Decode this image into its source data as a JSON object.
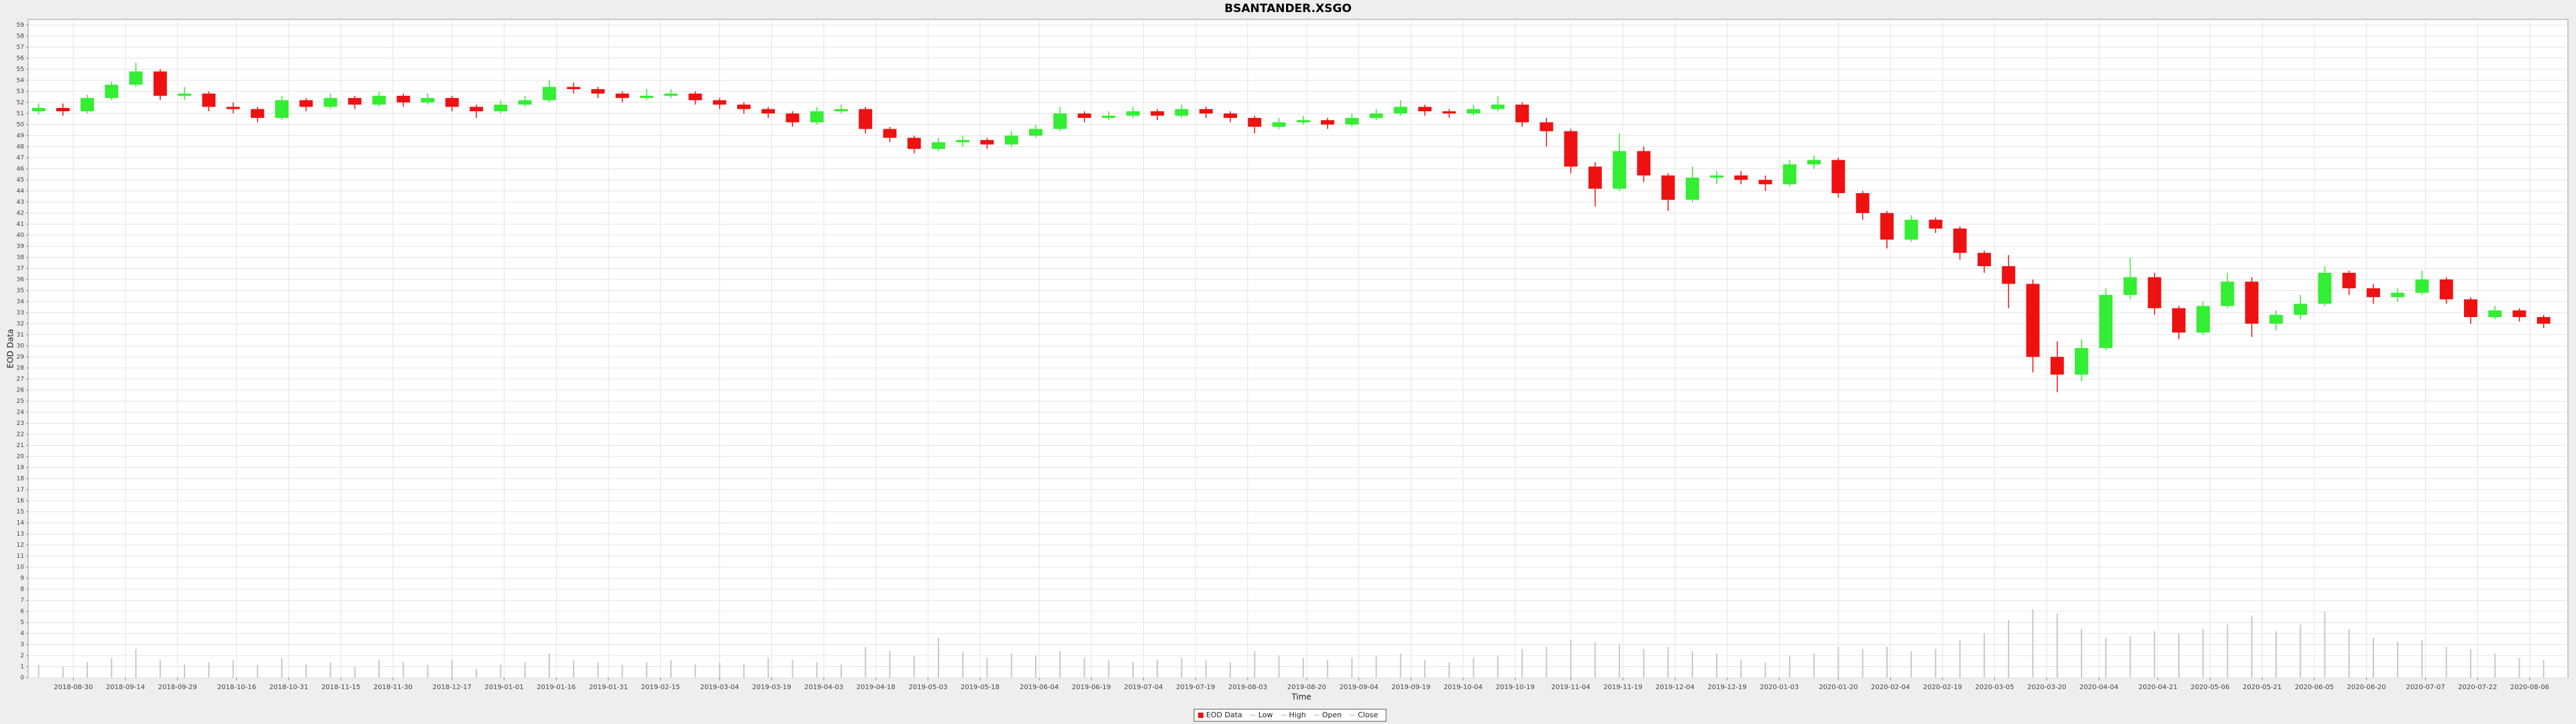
{
  "chart_data": {
    "type": "candlestick",
    "title": "BSANTANDER.XSGO",
    "x_label": "Time",
    "y_label": "EOD Data",
    "x": [
      "2018-08-20",
      "2018-08-27",
      "2018-09-03",
      "2018-09-10",
      "2018-09-17",
      "2018-09-24",
      "2018-10-01",
      "2018-10-08",
      "2018-10-15",
      "2018-10-22",
      "2018-10-29",
      "2018-11-05",
      "2018-11-12",
      "2018-11-19",
      "2018-11-26",
      "2018-12-03",
      "2018-12-10",
      "2018-12-17",
      "2018-12-24",
      "2018-12-31",
      "2019-01-07",
      "2019-01-14",
      "2019-01-21",
      "2019-01-28",
      "2019-02-04",
      "2019-02-11",
      "2019-02-18",
      "2019-02-25",
      "2019-03-04",
      "2019-03-11",
      "2019-03-18",
      "2019-03-25",
      "2019-04-01",
      "2019-04-08",
      "2019-04-15",
      "2019-04-22",
      "2019-04-29",
      "2019-05-06",
      "2019-05-13",
      "2019-05-20",
      "2019-05-27",
      "2019-06-03",
      "2019-06-10",
      "2019-06-17",
      "2019-06-24",
      "2019-07-01",
      "2019-07-08",
      "2019-07-15",
      "2019-07-22",
      "2019-07-29",
      "2019-08-05",
      "2019-08-12",
      "2019-08-19",
      "2019-08-26",
      "2019-09-02",
      "2019-09-09",
      "2019-09-16",
      "2019-09-23",
      "2019-09-30",
      "2019-10-07",
      "2019-10-14",
      "2019-10-21",
      "2019-10-28",
      "2019-11-04",
      "2019-11-11",
      "2019-11-18",
      "2019-11-25",
      "2019-12-02",
      "2019-12-09",
      "2019-12-16",
      "2019-12-23",
      "2019-12-30",
      "2020-01-06",
      "2020-01-13",
      "2020-01-20",
      "2020-01-27",
      "2020-02-03",
      "2020-02-10",
      "2020-02-17",
      "2020-02-24",
      "2020-03-02",
      "2020-03-09",
      "2020-03-16",
      "2020-03-23",
      "2020-03-30",
      "2020-04-06",
      "2020-04-13",
      "2020-04-20",
      "2020-04-27",
      "2020-05-04",
      "2020-05-11",
      "2020-05-18",
      "2020-05-25",
      "2020-06-01",
      "2020-06-08",
      "2020-06-15",
      "2020-06-22",
      "2020-06-29",
      "2020-07-06",
      "2020-07-13",
      "2020-07-20",
      "2020-07-27",
      "2020-08-03",
      "2020-08-10"
    ],
    "open": [
      51.2,
      51.5,
      51.2,
      52.4,
      53.6,
      54.8,
      52.6,
      52.8,
      51.6,
      51.4,
      50.6,
      52.2,
      51.6,
      52.4,
      51.8,
      52.6,
      52.0,
      52.4,
      51.6,
      51.2,
      51.8,
      52.2,
      53.4,
      53.2,
      52.8,
      52.4,
      52.6,
      52.8,
      52.2,
      51.8,
      51.4,
      51.0,
      50.2,
      51.2,
      51.4,
      49.6,
      48.8,
      47.8,
      48.4,
      48.6,
      48.2,
      49.0,
      49.6,
      51.0,
      50.6,
      50.8,
      51.2,
      50.8,
      51.4,
      51.0,
      50.6,
      49.8,
      50.2,
      50.4,
      50.0,
      50.6,
      51.0,
      51.6,
      51.2,
      51.0,
      51.4,
      51.8,
      50.2,
      49.4,
      46.2,
      44.2,
      47.6,
      45.4,
      43.2,
      45.2,
      45.4,
      45.0,
      44.6,
      46.4,
      46.8,
      43.8,
      42.0,
      39.6,
      41.4,
      40.6,
      38.4,
      37.2,
      35.6,
      29.0,
      27.4,
      29.8,
      34.6,
      36.2,
      33.4,
      31.2,
      33.6,
      35.8,
      32.0,
      32.8,
      33.8,
      36.6,
      35.2,
      34.4,
      34.8,
      36.0,
      34.2,
      32.6,
      33.2,
      32.6
    ],
    "high": [
      51.9,
      51.9,
      52.7,
      53.9,
      55.6,
      55.0,
      53.4,
      53.0,
      52.0,
      51.6,
      52.6,
      52.4,
      52.8,
      52.6,
      53.0,
      52.8,
      52.8,
      52.6,
      51.8,
      52.2,
      52.6,
      54.0,
      53.8,
      53.4,
      53.0,
      53.2,
      53.2,
      53.0,
      52.4,
      52.0,
      51.6,
      51.2,
      51.6,
      51.8,
      51.6,
      49.8,
      49.0,
      48.8,
      49.0,
      48.8,
      49.4,
      50.0,
      51.6,
      51.2,
      51.2,
      51.6,
      51.4,
      51.8,
      51.6,
      51.2,
      50.8,
      50.6,
      50.8,
      50.6,
      51.0,
      51.4,
      52.2,
      51.8,
      51.4,
      51.8,
      52.6,
      52.0,
      50.6,
      49.6,
      46.6,
      49.2,
      48.0,
      45.6,
      46.2,
      45.8,
      45.8,
      45.4,
      46.8,
      47.2,
      47.0,
      44.0,
      42.2,
      41.8,
      41.6,
      40.8,
      38.6,
      38.2,
      36.0,
      30.4,
      30.6,
      35.2,
      38.0,
      36.6,
      33.6,
      34.0,
      36.6,
      36.2,
      33.2,
      34.6,
      37.2,
      36.8,
      35.6,
      35.2,
      36.8,
      36.2,
      34.4,
      33.6,
      33.4,
      32.8
    ],
    "low": [
      50.9,
      50.8,
      51.0,
      52.2,
      53.4,
      52.2,
      52.2,
      51.2,
      51.0,
      50.2,
      50.4,
      51.2,
      51.4,
      51.4,
      51.6,
      51.6,
      51.8,
      51.2,
      50.6,
      51.0,
      51.6,
      52.0,
      52.8,
      52.4,
      52.0,
      52.2,
      52.4,
      51.8,
      51.4,
      51.0,
      50.6,
      49.8,
      50.0,
      51.0,
      49.2,
      48.4,
      47.4,
      47.6,
      48.0,
      47.8,
      48.0,
      48.8,
      49.4,
      50.2,
      50.4,
      50.6,
      50.4,
      50.6,
      50.6,
      50.2,
      49.2,
      49.6,
      50.0,
      49.6,
      49.8,
      50.4,
      50.8,
      50.8,
      50.6,
      50.8,
      51.2,
      49.8,
      48.0,
      45.6,
      42.6,
      44.0,
      44.8,
      42.2,
      43.0,
      44.6,
      44.6,
      44.0,
      44.4,
      46.0,
      43.4,
      41.4,
      38.8,
      39.4,
      40.2,
      37.8,
      36.6,
      33.4,
      27.6,
      25.8,
      26.8,
      29.6,
      34.2,
      32.8,
      30.6,
      31.0,
      33.4,
      30.8,
      31.4,
      32.4,
      33.6,
      34.6,
      33.8,
      34.0,
      34.6,
      33.8,
      32.0,
      32.4,
      32.2,
      31.6
    ],
    "close": [
      51.5,
      51.2,
      52.4,
      53.6,
      54.8,
      52.6,
      52.8,
      51.6,
      51.4,
      50.6,
      52.2,
      51.6,
      52.4,
      51.8,
      52.6,
      52.0,
      52.4,
      51.6,
      51.2,
      51.8,
      52.2,
      53.4,
      53.2,
      52.8,
      52.4,
      52.6,
      52.8,
      52.2,
      51.8,
      51.4,
      51.0,
      50.2,
      51.2,
      51.4,
      49.6,
      48.8,
      47.8,
      48.4,
      48.6,
      48.2,
      49.0,
      49.6,
      51.0,
      50.6,
      50.8,
      51.2,
      50.8,
      51.4,
      51.0,
      50.6,
      49.8,
      50.2,
      50.4,
      50.0,
      50.6,
      51.0,
      51.6,
      51.2,
      51.0,
      51.4,
      51.8,
      50.2,
      49.4,
      46.2,
      44.2,
      47.6,
      45.4,
      43.2,
      45.2,
      45.4,
      45.0,
      44.6,
      46.4,
      46.8,
      43.8,
      42.0,
      39.6,
      41.4,
      40.6,
      38.4,
      37.2,
      35.6,
      29.0,
      27.4,
      29.8,
      34.6,
      36.2,
      33.4,
      31.2,
      33.6,
      35.8,
      32.0,
      32.8,
      33.8,
      36.6,
      35.2,
      34.4,
      34.8,
      36.0,
      34.2,
      32.6,
      33.2,
      32.6,
      32.0
    ],
    "volume": [
      1.2,
      1.0,
      1.4,
      1.8,
      2.6,
      1.6,
      1.2,
      1.4,
      1.6,
      1.2,
      1.8,
      1.2,
      1.4,
      1.0,
      1.6,
      1.4,
      1.2,
      1.6,
      0.8,
      1.2,
      1.4,
      2.2,
      1.6,
      1.4,
      1.2,
      1.4,
      1.6,
      1.2,
      1.4,
      1.2,
      1.8,
      1.6,
      1.4,
      1.2,
      2.8,
      2.4,
      2.0,
      3.6,
      2.4,
      1.8,
      2.2,
      2.0,
      2.4,
      1.8,
      1.6,
      1.4,
      1.6,
      1.8,
      1.6,
      1.4,
      2.4,
      2.0,
      1.8,
      1.6,
      1.8,
      2.0,
      2.2,
      1.6,
      1.4,
      1.8,
      2.0,
      2.6,
      2.8,
      3.4,
      3.2,
      3.0,
      2.6,
      2.8,
      2.4,
      2.2,
      1.6,
      1.4,
      2.0,
      2.2,
      2.8,
      2.6,
      2.8,
      2.4,
      2.6,
      3.4,
      4.0,
      5.2,
      6.2,
      5.8,
      4.4,
      3.6,
      3.8,
      4.2,
      4.0,
      4.4,
      4.8,
      5.6,
      4.2,
      4.8,
      6.0,
      4.4,
      3.6,
      3.2,
      3.4,
      2.8,
      2.6,
      2.2,
      1.8,
      1.6
    ],
    "up_color": "#33ee33",
    "down_color": "#ee1111",
    "volume_color": "#c8c8c8",
    "xlim": [
      "2018-08-17",
      "2020-08-17"
    ],
    "xticks": [
      "2018-08-30",
      "2018-09-14",
      "2018-09-29",
      "2018-10-16",
      "2018-10-31",
      "2018-11-15",
      "2018-11-30",
      "2018-12-17",
      "2019-01-01",
      "2019-01-16",
      "2019-01-31",
      "2019-02-15",
      "2019-03-04",
      "2019-03-19",
      "2019-04-03",
      "2019-04-18",
      "2019-05-03",
      "2019-05-18",
      "2019-06-04",
      "2019-06-19",
      "2019-07-04",
      "2019-07-19",
      "2019-08-03",
      "2019-08-20",
      "2019-09-04",
      "2019-09-19",
      "2019-10-04",
      "2019-10-19",
      "2019-11-04",
      "2019-11-19",
      "2019-12-04",
      "2019-12-19",
      "2020-01-03",
      "2020-01-20",
      "2020-02-04",
      "2020-02-19",
      "2020-03-05",
      "2020-03-20",
      "2020-04-04",
      "2020-04-21",
      "2020-05-06",
      "2020-05-21",
      "2020-06-05",
      "2020-06-20",
      "2020-07-07",
      "2020-07-22",
      "2020-08-06"
    ],
    "ylim": [
      0,
      59.5
    ],
    "yticks": [
      0,
      1,
      2,
      3,
      4,
      5,
      6,
      7,
      8,
      9,
      10,
      11,
      12,
      13,
      14,
      15,
      16,
      17,
      18,
      19,
      20,
      21,
      22,
      23,
      24,
      25,
      26,
      27,
      28,
      29,
      30,
      31,
      32,
      33,
      34,
      35,
      36,
      37,
      38,
      39,
      40,
      41,
      42,
      43,
      44,
      45,
      46,
      47,
      48,
      49,
      50,
      51,
      52,
      53,
      54,
      55,
      56,
      57,
      58,
      59
    ],
    "grid": true,
    "legend": [
      "EOD Data",
      "Low",
      "High",
      "Open",
      "Close"
    ],
    "legend_position": "bottom"
  }
}
